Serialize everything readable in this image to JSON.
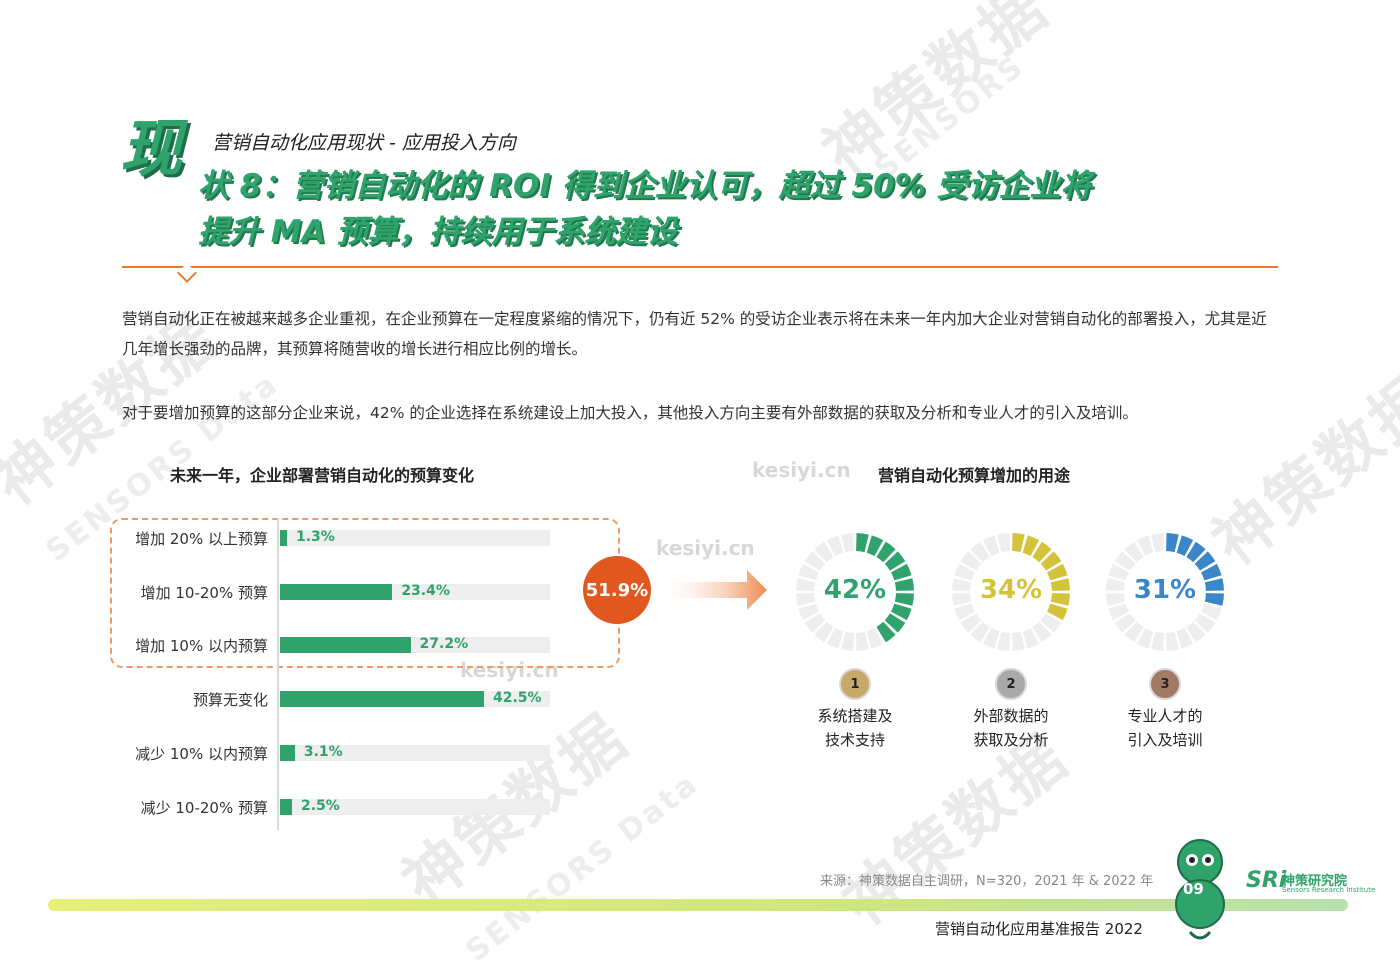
{
  "header": {
    "big_char": "现",
    "subtitle": "营销自动化应用现状 - 应用投入方向",
    "title_line1": "状 8：营销自动化的 ROI 得到企业认可，超过 50% 受访企业将",
    "title_line2": "提升 MA 预算，持续用于系统建设"
  },
  "body": {
    "para1": "营销自动化正在被越来越多企业重视，在企业预算在一定程度紧缩的情况下，仍有近 52% 的受访企业表示将在未来一年内加大企业对营销自动化的部署投入，尤其是近几年增长强劲的品牌，其预算将随营收的增长进行相应比例的增长。",
    "para2": "对于要增加预算的这部分企业来说，42% 的企业选择在系统建设上加大投入，其他投入方向主要有外部数据的获取及分析和专业人才的引入及培训。"
  },
  "chart_data": [
    {
      "type": "bar",
      "orientation": "horizontal",
      "title": "未来一年，企业部署营销自动化的预算变化",
      "categories": [
        "增加 20% 以上预算",
        "增加 10-20% 预算",
        "增加 10% 以内预算",
        "预算无变化",
        "减少 10% 以内预算",
        "减少 10-20% 预算"
      ],
      "values": [
        1.3,
        23.4,
        27.2,
        42.5,
        3.1,
        2.5
      ],
      "value_labels": [
        "1.3%",
        "23.4%",
        "27.2%",
        "42.5%",
        "3.1%",
        "2.5%"
      ],
      "highlight_total": "51.9%",
      "xlim": [
        0,
        100
      ],
      "color": "#2fa36b"
    },
    {
      "type": "pie",
      "style": "segmented-donut",
      "title": "营销自动化预算增加的用途",
      "items": [
        {
          "rank": "1",
          "label_line1": "系统搭建及",
          "label_line2": "技术支持",
          "value": 42,
          "display": "42%",
          "color": "#2fa36b"
        },
        {
          "rank": "2",
          "label_line1": "外部数据的",
          "label_line2": "获取及分析",
          "value": 34,
          "display": "34%",
          "color": "#d4c33a"
        },
        {
          "rank": "3",
          "label_line1": "专业人才的",
          "label_line2": "引入及培训",
          "value": 31,
          "display": "31%",
          "color": "#3a86c8"
        }
      ]
    }
  ],
  "rank_colors": [
    "#c9a96a",
    "#a8aaa9",
    "#a27a66"
  ],
  "total_color": "#e0581f",
  "watermarks": {
    "cn": "神策数据",
    "en": "SENSORS Data",
    "site": "kesiyi.cn",
    "en2": "SENSORS"
  },
  "footer": {
    "source": "来源：神策数据自主调研，N=320，2021 年 & 2022 年",
    "report": "营销自动化应用基准报告 2022",
    "page": "09",
    "logo_mark": "SRi",
    "logo_name": "神策研究院",
    "logo_sub": "Sensors Research Institute"
  }
}
